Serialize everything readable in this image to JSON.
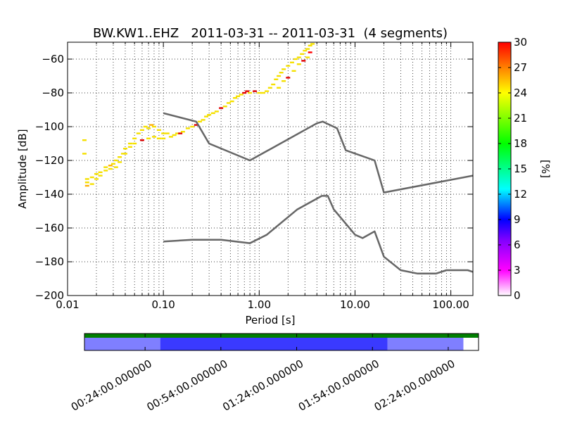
{
  "chart_data": {
    "type": "heatmap",
    "title": "BW.KW1..EHZ   2011-03-31 -- 2011-03-31  (4 segments)",
    "xlabel": "Period [s]",
    "ylabel": "Amplitude [dB]",
    "x_scale": "log",
    "xlim": [
      0.01,
      170
    ],
    "ylim": [
      -200,
      -50
    ],
    "xticks": [
      {
        "value": 0.01,
        "label": "0.01"
      },
      {
        "value": 0.1,
        "label": "0.10"
      },
      {
        "value": 1,
        "label": "1.00"
      },
      {
        "value": 10,
        "label": "10.00"
      },
      {
        "value": 100,
        "label": "100.00"
      }
    ],
    "yticks": [
      {
        "value": -200,
        "label": "−200"
      },
      {
        "value": -180,
        "label": "−180"
      },
      {
        "value": -160,
        "label": "−160"
      },
      {
        "value": -140,
        "label": "−140"
      },
      {
        "value": -120,
        "label": "−120"
      },
      {
        "value": -100,
        "label": "−100"
      },
      {
        "value": -80,
        "label": "−80"
      },
      {
        "value": -60,
        "label": "−60"
      }
    ],
    "grid": true,
    "colorbar": {
      "label": "[%]",
      "range": [
        0,
        30
      ],
      "ticks": [
        "0",
        "3",
        "6",
        "9",
        "12",
        "15",
        "18",
        "21",
        "24",
        "27",
        "30"
      ],
      "colors": [
        "#ffffff",
        "#ff00ff",
        "#0000ff",
        "#00ffff",
        "#00ff00",
        "#ffff00",
        "#ff0000"
      ]
    },
    "psd_density": [
      [
        0.015,
        -108,
        24
      ],
      [
        0.015,
        -116,
        24
      ],
      [
        0.016,
        -131,
        24
      ],
      [
        0.016,
        -133,
        24
      ],
      [
        0.016,
        -135,
        26
      ],
      [
        0.018,
        -130,
        24
      ],
      [
        0.018,
        -134,
        24
      ],
      [
        0.02,
        -128,
        24
      ],
      [
        0.02,
        -131,
        24
      ],
      [
        0.022,
        -127,
        24
      ],
      [
        0.022,
        -129,
        24
      ],
      [
        0.025,
        -126,
        24
      ],
      [
        0.025,
        -124,
        24
      ],
      [
        0.028,
        -123,
        26
      ],
      [
        0.028,
        -125,
        24
      ],
      [
        0.03,
        -122,
        24
      ],
      [
        0.032,
        -120,
        24
      ],
      [
        0.032,
        -124,
        24
      ],
      [
        0.035,
        -118,
        24
      ],
      [
        0.035,
        -121,
        24
      ],
      [
        0.038,
        -116,
        24
      ],
      [
        0.04,
        -113,
        24
      ],
      [
        0.04,
        -116,
        24
      ],
      [
        0.045,
        -110,
        24
      ],
      [
        0.045,
        -112,
        24
      ],
      [
        0.05,
        -107,
        24
      ],
      [
        0.05,
        -110,
        24
      ],
      [
        0.055,
        -104,
        24
      ],
      [
        0.06,
        -102,
        24
      ],
      [
        0.06,
        -108,
        28
      ],
      [
        0.065,
        -100,
        24
      ],
      [
        0.07,
        -101,
        24
      ],
      [
        0.07,
        -107,
        24
      ],
      [
        0.075,
        -99,
        26
      ],
      [
        0.08,
        -100,
        24
      ],
      [
        0.08,
        -106,
        24
      ],
      [
        0.09,
        -102,
        24
      ],
      [
        0.09,
        -107,
        24
      ],
      [
        0.1,
        -104,
        24
      ],
      [
        0.1,
        -107,
        24
      ],
      [
        0.11,
        -104,
        24
      ],
      [
        0.12,
        -106,
        24
      ],
      [
        0.13,
        -105,
        24
      ],
      [
        0.14,
        -104,
        24
      ],
      [
        0.15,
        -104,
        28
      ],
      [
        0.16,
        -103,
        24
      ],
      [
        0.18,
        -101,
        24
      ],
      [
        0.2,
        -100,
        24
      ],
      [
        0.22,
        -99,
        28
      ],
      [
        0.24,
        -97,
        24
      ],
      [
        0.26,
        -96,
        24
      ],
      [
        0.28,
        -94,
        24
      ],
      [
        0.3,
        -93,
        24
      ],
      [
        0.33,
        -92,
        24
      ],
      [
        0.36,
        -91,
        24
      ],
      [
        0.4,
        -89,
        28
      ],
      [
        0.44,
        -88,
        24
      ],
      [
        0.48,
        -86,
        24
      ],
      [
        0.52,
        -85,
        24
      ],
      [
        0.56,
        -83,
        24
      ],
      [
        0.6,
        -82,
        24
      ],
      [
        0.65,
        -81,
        24
      ],
      [
        0.7,
        -80,
        28
      ],
      [
        0.75,
        -79,
        28
      ],
      [
        0.8,
        -80,
        24
      ],
      [
        0.9,
        -79,
        28
      ],
      [
        1.0,
        -80,
        24
      ],
      [
        1.1,
        -80,
        24
      ],
      [
        1.2,
        -79,
        24
      ],
      [
        1.3,
        -77,
        24
      ],
      [
        1.4,
        -75,
        24
      ],
      [
        1.5,
        -72,
        24
      ],
      [
        1.6,
        -70,
        24
      ],
      [
        1.7,
        -68,
        24
      ],
      [
        1.8,
        -66,
        24
      ],
      [
        2.0,
        -64,
        24
      ],
      [
        2.2,
        -62,
        24
      ],
      [
        2.4,
        -60,
        24
      ],
      [
        2.6,
        -59,
        24
      ],
      [
        2.8,
        -57,
        24
      ],
      [
        3.0,
        -55,
        24
      ],
      [
        3.2,
        -54,
        24
      ],
      [
        3.4,
        -52,
        24
      ],
      [
        3.6,
        -51,
        24
      ],
      [
        1.6,
        -77,
        24
      ],
      [
        1.8,
        -73,
        24
      ],
      [
        2.0,
        -71,
        28
      ],
      [
        2.3,
        -67,
        24
      ],
      [
        2.6,
        -63,
        24
      ],
      [
        2.9,
        -61,
        28
      ],
      [
        3.2,
        -59,
        24
      ],
      [
        3.4,
        -56,
        30
      ]
    ],
    "series": [
      {
        "x": [
          0.1,
          0.22,
          0.3,
          0.8,
          4.0,
          4.6,
          6.5,
          8.0,
          16.0,
          20.0,
          170.0
        ],
        "y": [
          -92,
          -97,
          -110,
          -120,
          -98,
          -97,
          -101,
          -114,
          -120,
          -139,
          -129
        ]
      },
      {
        "x": [
          0.1,
          0.2,
          0.4,
          0.8,
          1.2,
          2.5,
          4.5,
          5.2,
          6.0,
          10.0,
          12.0,
          16.0,
          20.0,
          30.0,
          45.0,
          70.0,
          90.0,
          150.0,
          170.0
        ],
        "y": [
          -168,
          -167,
          -167,
          -169,
          -164,
          -149,
          -141,
          -141,
          -149,
          -164,
          -166,
          -162,
          -177,
          -185,
          -187,
          -187,
          -185,
          -185,
          -186
        ]
      }
    ],
    "timeline": {
      "tick_labels": [
        "00:24:00.000000",
        "00:54:00.000000",
        "01:24:00.000000",
        "01:54:00.000000",
        "02:24:00.000000"
      ],
      "tick_minutes": [
        24,
        54,
        84,
        114,
        144
      ],
      "range_minutes": [
        0,
        156
      ],
      "segments": [
        {
          "start": 0,
          "end": 30,
          "color": "#7f7fff"
        },
        {
          "start": 30,
          "end": 120,
          "color": "#3a3aff"
        },
        {
          "start": 120,
          "end": 150,
          "color": "#7f7fff"
        }
      ],
      "coverage_color": "#007f00",
      "coverage": [
        0,
        156
      ]
    }
  }
}
